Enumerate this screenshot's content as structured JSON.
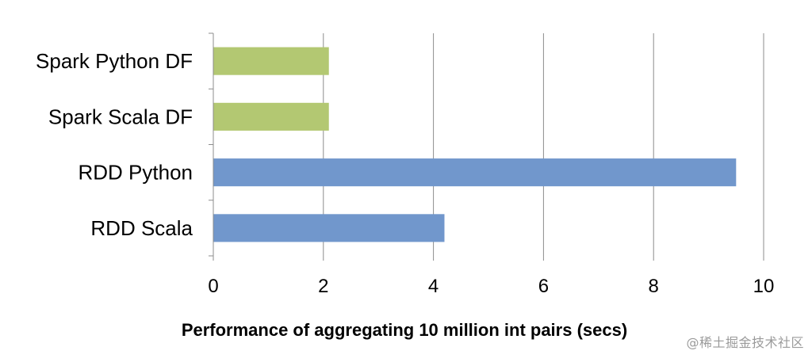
{
  "chart_data": {
    "type": "bar",
    "orientation": "horizontal",
    "categories": [
      "Spark Python DF",
      "Spark Scala DF",
      "RDD Python",
      "RDD Scala"
    ],
    "values": [
      2.1,
      2.1,
      9.5,
      4.2
    ],
    "colors": [
      "#b3c872",
      "#b3c872",
      "#7197cc",
      "#7197cc"
    ],
    "xlim": [
      0,
      10
    ],
    "xticks": [
      0,
      2,
      4,
      6,
      8,
      10
    ],
    "xlabel": "Performance of aggregating 10 million int pairs (secs)",
    "grid": true
  },
  "watermark": "@稀土掘金技术社区"
}
